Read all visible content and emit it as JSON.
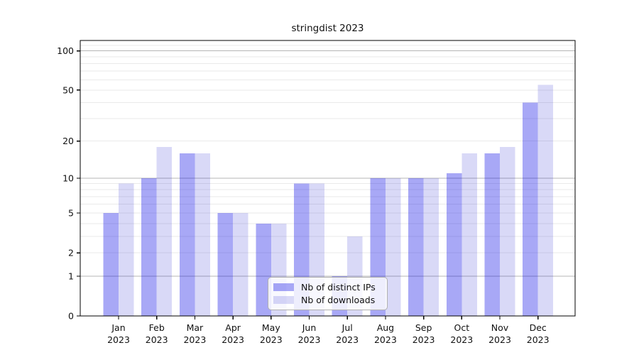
{
  "title": "stringdist 2023",
  "chart_data": {
    "type": "bar",
    "title": "stringdist 2023",
    "categories": [
      "Jan",
      "Feb",
      "Mar",
      "Apr",
      "May",
      "Jun",
      "Jul",
      "Aug",
      "Sep",
      "Oct",
      "Nov",
      "Dec"
    ],
    "x_year_label": "2023",
    "series": [
      {
        "name": "Nb of distinct IPs",
        "color": "#0000e6",
        "alpha": 0.34,
        "values": [
          5,
          10,
          16,
          5,
          4,
          9,
          1,
          10,
          10,
          11,
          16,
          40
        ]
      },
      {
        "name": "Nb of downloads",
        "color": "#0000c8",
        "alpha": 0.15,
        "values": [
          9,
          18,
          16,
          5,
          4,
          9,
          3,
          10,
          10,
          16,
          18,
          55
        ]
      }
    ],
    "xlabel": "",
    "ylabel": "",
    "yscale": "log1p",
    "ylim": [
      0,
      120
    ],
    "yticks": [
      100,
      50,
      20,
      10,
      5,
      2,
      1,
      0
    ],
    "major_gridlines": [
      1,
      10,
      100
    ],
    "minor_gridlines": [
      2,
      3,
      4,
      5,
      6,
      7,
      8,
      9,
      20,
      30,
      40,
      50,
      60,
      70,
      80,
      90,
      110
    ],
    "grid": "on",
    "legend_position": "lower center, inside plot"
  },
  "colors": {
    "major_grid": "#b5b5b5",
    "minor_grid": "#eaeaea",
    "axis": "#000000",
    "tick_text": "#111111"
  }
}
